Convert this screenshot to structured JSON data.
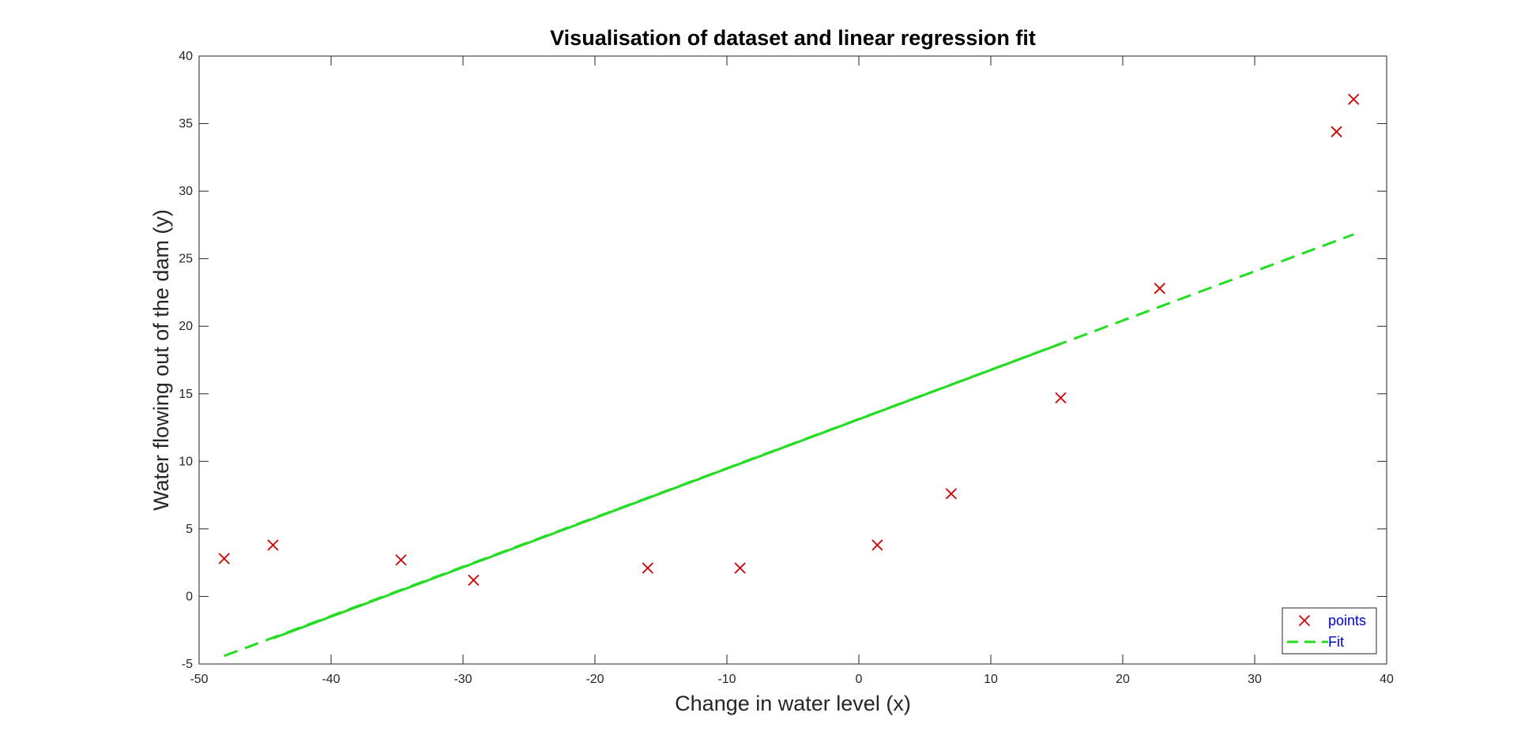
{
  "chart_data": {
    "type": "scatter",
    "title": "Visualisation of dataset and linear regression fit",
    "xlabel": "Change in water level (x)",
    "ylabel": "Water flowing out of the dam (y)",
    "xlim": [
      -50,
      40
    ],
    "ylim": [
      -5,
      40
    ],
    "xticks": [
      -50,
      -40,
      -30,
      -20,
      -10,
      0,
      10,
      20,
      30,
      40
    ],
    "yticks": [
      -5,
      0,
      5,
      10,
      15,
      20,
      25,
      30,
      35,
      40
    ],
    "grid": false,
    "legend_position": "bottom-right",
    "series": [
      {
        "name": "points",
        "kind": "scatter",
        "marker": "x",
        "color": "#cc0000",
        "points": [
          [
            -48.1,
            2.8
          ],
          [
            -44.4,
            3.8
          ],
          [
            -34.7,
            2.7
          ],
          [
            -29.2,
            1.2
          ],
          [
            -16.0,
            2.1
          ],
          [
            -9.0,
            2.1
          ],
          [
            1.4,
            3.8
          ],
          [
            7.0,
            7.6
          ],
          [
            15.3,
            14.7
          ],
          [
            22.8,
            22.8
          ],
          [
            36.2,
            34.4
          ],
          [
            37.5,
            36.8
          ]
        ]
      },
      {
        "name": "Fit",
        "kind": "line",
        "color": "#22dd22",
        "line_style": "dashed",
        "points": [
          [
            -48.1,
            -4.4
          ],
          [
            37.5,
            26.8
          ]
        ]
      },
      {
        "kind": "line",
        "color": "#22dd22",
        "line_style": "solid",
        "points": [
          [
            -44.4,
            -3.1
          ],
          [
            15.3,
            18.7
          ]
        ]
      }
    ]
  }
}
